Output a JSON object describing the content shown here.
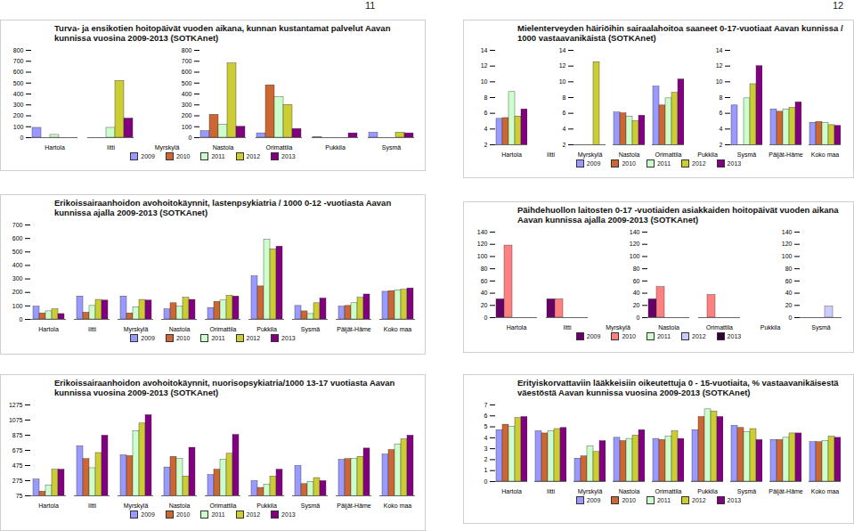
{
  "page_numbers": [
    11,
    12
  ],
  "chart_data": [
    {
      "type": "bar",
      "title": "Turva- ja ensikotien hoitopäivät vuoden aikana, kunnan kustantamat palvelut Aavan kunnissa vuosina 2009-2013 (SOTKAnet)",
      "categories": [
        "Hartola",
        "Iitti",
        "Myrskylä",
        "Nastola",
        "Orimattila",
        "Pukkila",
        "Sysmä"
      ],
      "series": [
        {
          "name": "2009",
          "color": "#9999ff",
          "values": [
            90,
            null,
            null,
            60,
            40,
            5,
            45
          ]
        },
        {
          "name": "2010",
          "color": "#cc6633",
          "values": [
            null,
            null,
            null,
            210,
            480,
            null,
            null
          ]
        },
        {
          "name": "2011",
          "color": "#ccffcc",
          "values": [
            25,
            90,
            null,
            120,
            370,
            null,
            null
          ]
        },
        {
          "name": "2012",
          "color": "#cccc33",
          "values": [
            null,
            520,
            null,
            680,
            300,
            null,
            45
          ]
        },
        {
          "name": "2013",
          "color": "#800080",
          "values": [
            null,
            175,
            null,
            100,
            80,
            40,
            40
          ]
        }
      ],
      "ylim": [
        0,
        800
      ],
      "yticks": [
        0,
        100,
        200,
        300,
        400,
        500,
        600,
        700,
        800
      ]
    },
    {
      "type": "bar",
      "title": "Mielenterveyden häiriöihin sairaalahoitoa saaneet 0-17-vuotiaat Aavan kunnissa / 1000 vastaavanikäistä (SOTKAnet)",
      "categories": [
        "Hartola",
        "Iitti",
        "Myrskylä",
        "Nastola",
        "Orimattila",
        "Pukkila",
        "Sysmä",
        "Päijät-Häme",
        "Koko maa"
      ],
      "series": [
        {
          "name": "2009",
          "color": "#9999ff",
          "values": [
            5.3,
            null,
            null,
            6.1,
            9.4,
            null,
            7.0,
            6.5,
            4.8
          ]
        },
        {
          "name": "2010",
          "color": "#cc6633",
          "values": [
            5.4,
            null,
            null,
            6.0,
            7.0,
            null,
            null,
            6.2,
            4.9
          ]
        },
        {
          "name": "2011",
          "color": "#ccffcc",
          "values": [
            8.7,
            null,
            null,
            5.6,
            7.9,
            null,
            7.9,
            6.5,
            4.8
          ]
        },
        {
          "name": "2012",
          "color": "#cccc33",
          "values": [
            5.6,
            null,
            12.5,
            5.0,
            8.6,
            null,
            9.7,
            6.7,
            4.5
          ]
        },
        {
          "name": "2013",
          "color": "#800080",
          "values": [
            6.5,
            null,
            null,
            5.7,
            10.3,
            null,
            12.0,
            7.4,
            4.4
          ]
        }
      ],
      "ylim": [
        2,
        14
      ],
      "yticks": [
        2,
        4,
        6,
        8,
        10,
        12,
        14
      ]
    },
    {
      "type": "bar",
      "title": "Erikoissairaanhoidon avohoitokäynnit, lastenpsykiatria / 1000 0-12 -vuotiasta Aavan kunnissa ajalla 2009-2013 (SOTKAnet)",
      "categories": [
        "Hartola",
        "Iitti",
        "Myrskylä",
        "Nastola",
        "Orimattila",
        "Pukkila",
        "Sysmä",
        "Päijät-Häme",
        "Koko maa"
      ],
      "series": [
        {
          "name": "2009",
          "color": "#9999ff",
          "values": [
            95,
            170,
            170,
            75,
            85,
            320,
            100,
            95,
            205
          ]
        },
        {
          "name": "2010",
          "color": "#cc6633",
          "values": [
            45,
            50,
            45,
            120,
            130,
            245,
            60,
            100,
            210
          ]
        },
        {
          "name": "2011",
          "color": "#ccffcc",
          "values": [
            60,
            100,
            90,
            95,
            140,
            590,
            40,
            120,
            215
          ]
        },
        {
          "name": "2012",
          "color": "#cccc33",
          "values": [
            75,
            145,
            145,
            160,
            175,
            520,
            120,
            160,
            220
          ]
        },
        {
          "name": "2013",
          "color": "#800080",
          "values": [
            40,
            140,
            140,
            145,
            170,
            540,
            155,
            185,
            230
          ]
        }
      ],
      "ylim": [
        0,
        700
      ],
      "yticks": [
        0,
        100,
        200,
        300,
        400,
        500,
        600,
        700
      ]
    },
    {
      "type": "bar",
      "title": "Päihdehuollon laitosten 0-17 -vuotiaiden asiakkaiden hoitopäivät vuoden aikana Aavan kunnissa ajalla 2009-2013 (SOTKAnet)",
      "categories": [
        "Hartola",
        "Iitti",
        "Myrskylä",
        "Nastola",
        "Orimattila",
        "Pukkila",
        "Sysmä"
      ],
      "series": [
        {
          "name": "2009",
          "color": "#660066",
          "values": [
            30,
            30,
            null,
            30,
            null,
            null,
            null
          ]
        },
        {
          "name": "2010",
          "color": "#ff8080",
          "values": [
            118,
            30,
            null,
            50,
            37,
            null,
            null
          ]
        },
        {
          "name": "2011",
          "color": "#ccffcc",
          "values": [
            null,
            null,
            null,
            null,
            null,
            null,
            null
          ]
        },
        {
          "name": "2012",
          "color": "#ccccff",
          "values": [
            null,
            null,
            null,
            null,
            null,
            null,
            18
          ]
        },
        {
          "name": "2013",
          "color": "#330033",
          "values": [
            null,
            null,
            null,
            null,
            null,
            null,
            null
          ]
        }
      ],
      "ylim": [
        0,
        140
      ],
      "yticks": [
        0,
        20,
        40,
        60,
        80,
        100,
        120,
        140
      ]
    },
    {
      "type": "bar",
      "title": "Erikoissairaanhoidon avohoitokäynnit, nuorisopsykiatria/1000 13-17 vuotiasta Aavan kunnissa vuosina 2009-2013 (SOTKAnet)",
      "categories": [
        "Hartola",
        "Iitti",
        "Myrskylä",
        "Nastola",
        "Orimattila",
        "Pukkila",
        "Sysmä",
        "Päijät-Häme",
        "Koko maa"
      ],
      "series": [
        {
          "name": "2009",
          "color": "#9999ff",
          "values": [
            290,
            730,
            610,
            450,
            350,
            270,
            470,
            550,
            620
          ]
        },
        {
          "name": "2010",
          "color": "#cc6633",
          "values": [
            130,
            560,
            600,
            590,
            420,
            180,
            230,
            560,
            680
          ]
        },
        {
          "name": "2011",
          "color": "#ccffcc",
          "values": [
            210,
            440,
            930,
            560,
            550,
            220,
            260,
            560,
            750
          ]
        },
        {
          "name": "2012",
          "color": "#cccc33",
          "values": [
            420,
            640,
            1030,
            330,
            630,
            330,
            310,
            590,
            820
          ]
        },
        {
          "name": "2013",
          "color": "#800080",
          "values": [
            420,
            870,
            1140,
            710,
            880,
            420,
            270,
            700,
            870
          ]
        }
      ],
      "ylim": [
        75,
        1275
      ],
      "yticks": [
        75,
        275,
        475,
        675,
        875,
        1075,
        1275
      ]
    },
    {
      "type": "bar",
      "title": "Erityiskorvattaviin lääkkeisiin oikeutettuja 0 - 15-vuotiaita, % vastaavanikäisestä väestöstä Aavan kunnissa vuosina 2009-2013 (SOTKAnet)",
      "categories": [
        "Hartola",
        "Iitti",
        "Myrskylä",
        "Nastola",
        "Orimattila",
        "Pukkila",
        "Sysmä",
        "Päijät-Häme",
        "Koko maa"
      ],
      "series": [
        {
          "name": "2009",
          "color": "#9999ff",
          "values": [
            4.7,
            4.6,
            2.1,
            4.0,
            3.9,
            4.7,
            5.1,
            3.8,
            3.6
          ]
        },
        {
          "name": "2010",
          "color": "#cc6633",
          "values": [
            5.2,
            4.4,
            2.3,
            3.7,
            3.8,
            5.9,
            4.9,
            3.8,
            3.6
          ]
        },
        {
          "name": "2011",
          "color": "#ccffcc",
          "values": [
            5.0,
            4.6,
            3.2,
            3.9,
            4.1,
            6.6,
            4.5,
            4.0,
            3.7
          ]
        },
        {
          "name": "2012",
          "color": "#cccc33",
          "values": [
            5.8,
            4.8,
            2.7,
            4.2,
            4.6,
            6.4,
            4.8,
            4.4,
            4.1
          ]
        },
        {
          "name": "2013",
          "color": "#800080",
          "values": [
            5.9,
            4.9,
            3.7,
            4.7,
            3.9,
            5.9,
            3.8,
            4.4,
            4.0
          ]
        }
      ],
      "ylim": [
        0,
        7
      ],
      "yticks": [
        0,
        1,
        2,
        3,
        4,
        5,
        6,
        7
      ]
    }
  ]
}
